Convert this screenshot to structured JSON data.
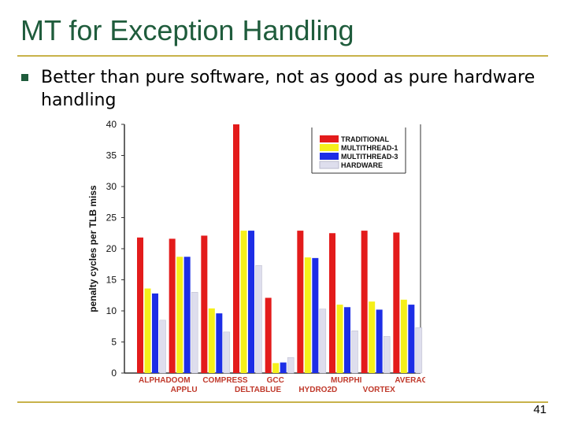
{
  "slide": {
    "title": "MT for Exception Handling",
    "bullet": "Better than pure software, not as good as pure hardware handling",
    "page_number": "41",
    "colors": {
      "title": "#1f5c3c",
      "rule": "#c8b24a",
      "bullet": "#1f5c3c"
    }
  },
  "chart_data": {
    "type": "bar",
    "ylabel": "penalty cycles per TLB miss",
    "ylim": [
      0,
      40
    ],
    "yticks": [
      0,
      5,
      10,
      15,
      20,
      25,
      30,
      35,
      40
    ],
    "categories": [
      "ALPHADOOM",
      "APPLU",
      "COMPRESS",
      "DELTABLUE",
      "GCC",
      "HYDRO2D",
      "MURPHI",
      "VORTEX",
      "AVERAGE"
    ],
    "series": [
      {
        "name": "TRADITIONAL",
        "color": "#e31b1b",
        "values": [
          21.8,
          21.6,
          22.1,
          40,
          12.1,
          22.9,
          22.5,
          22.9,
          22.6
        ]
      },
      {
        "name": "MULTITHREAD-1",
        "color": "#f5ef1a",
        "values": [
          13.6,
          18.7,
          10.4,
          22.9,
          1.6,
          18.6,
          11.0,
          11.5,
          11.8
        ]
      },
      {
        "name": "MULTITHREAD-3",
        "color": "#1d2ee6",
        "values": [
          12.8,
          18.7,
          9.6,
          22.9,
          1.7,
          18.5,
          10.6,
          10.2,
          11.0
        ]
      },
      {
        "name": "HARDWARE",
        "color": "#dedeed",
        "values": [
          8.5,
          13.0,
          6.6,
          17.3,
          2.5,
          10.3,
          6.8,
          5.9,
          7.3
        ]
      }
    ],
    "legend_position": "top-right",
    "grid": false
  }
}
